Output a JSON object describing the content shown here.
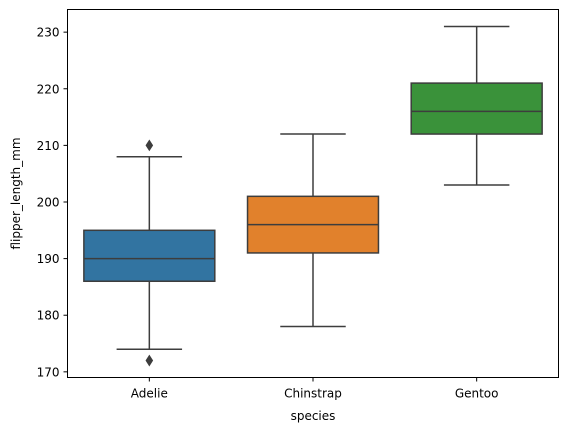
{
  "chart_data": {
    "type": "box",
    "title": "",
    "xlabel": "species",
    "ylabel": "flipper_length_mm",
    "ylim": [
      169,
      234
    ],
    "yticks": [
      170,
      180,
      190,
      200,
      210,
      220,
      230
    ],
    "grid": false,
    "categories": [
      "Adelie",
      "Chinstrap",
      "Gentoo"
    ],
    "boxes": [
      {
        "category": "Adelie",
        "whisker_low": 174,
        "q1": 186,
        "median": 190,
        "q3": 195,
        "whisker_high": 208,
        "fliers": [
          172,
          210
        ],
        "color": "#3274a1"
      },
      {
        "category": "Chinstrap",
        "whisker_low": 178,
        "q1": 191,
        "median": 196,
        "q3": 201,
        "whisker_high": 212,
        "fliers": [],
        "color": "#e1812c"
      },
      {
        "category": "Gentoo",
        "whisker_low": 203,
        "q1": 212,
        "median": 216,
        "q3": 221,
        "whisker_high": 231,
        "fliers": [],
        "color": "#3a923a"
      }
    ]
  }
}
